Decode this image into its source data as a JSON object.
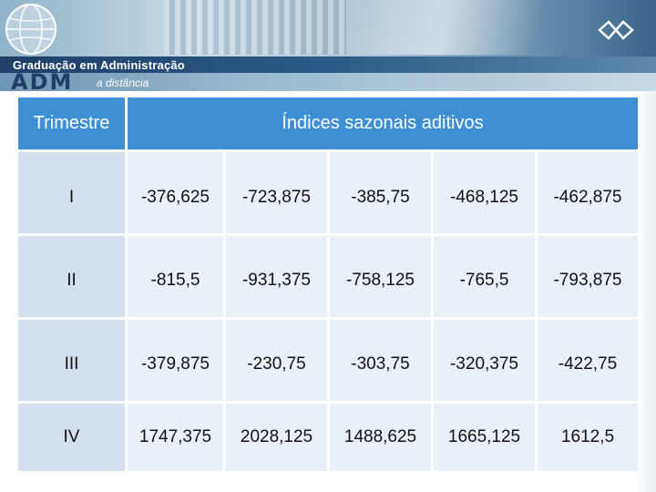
{
  "header": {
    "course_title": "Graduação em Administração",
    "logo_text": "ADM",
    "subtitle": "a distância"
  },
  "table": {
    "header_first": "Trimestre",
    "header_main": "Índices sazonais aditivos",
    "rows": [
      {
        "label": "I",
        "values": [
          "-376,625",
          "-723,875",
          "-385,75",
          "-468,125",
          "-462,875"
        ]
      },
      {
        "label": "II",
        "values": [
          "-815,5",
          "-931,375",
          "-758,125",
          "-765,5",
          "-793,875"
        ]
      },
      {
        "label": "III",
        "values": [
          "-379,875",
          "-230,75",
          "-303,75",
          "-320,375",
          "-422,75"
        ]
      },
      {
        "label": "IV",
        "values": [
          "1747,375",
          "2028,125",
          "1488,625",
          "1665,125",
          "1612,5"
        ]
      }
    ]
  },
  "colors": {
    "header_bg": "#3e8fd4",
    "label_bg": "#d4e0ee",
    "value_bg": "#eaf0f7",
    "banner_dark": "#1f3f66"
  },
  "icons": [
    "globe-icon",
    "university-logo-icon"
  ]
}
